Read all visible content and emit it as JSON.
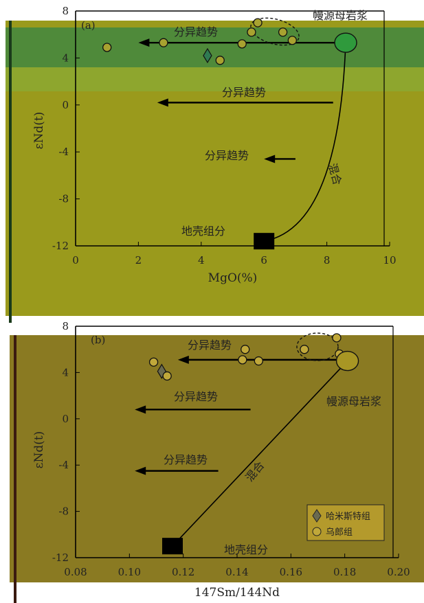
{
  "colors": {
    "panel_a_band_top": "#4f8a3a",
    "panel_a_band_mid": "#8ea62e",
    "panel_a_bg": "#9a9a1c",
    "panel_b_bg": "#8a7a22",
    "circle_fill": "#a8a230",
    "circle_fill_b": "#c0a83a",
    "mantle_a": "#2f9a3c",
    "mantle_b": "#a89624",
    "diamond_a": "#2f7a52",
    "diamond_b": "#6a6a50",
    "crust": "#000000",
    "line": "#000000"
  },
  "legend": {
    "items": [
      {
        "label": "哈米斯特组",
        "marker": "diamond"
      },
      {
        "label": "乌郎组",
        "marker": "circle"
      }
    ]
  },
  "chart_data": [
    {
      "type": "scatter",
      "panel_label": "(a)",
      "xlabel": "MgO(%)",
      "ylabel": "εNd(t)",
      "xlim": [
        0,
        10
      ],
      "ylim": [
        -12,
        8
      ],
      "xticks": [
        "0",
        "2",
        "4",
        "6",
        "8",
        "10"
      ],
      "yticks": [
        "8",
        "4",
        "0",
        "-4",
        "-8",
        "-12"
      ],
      "series": [
        {
          "name": "哈米斯特组",
          "marker": "diamond",
          "points": [
            {
              "x": 4.2,
              "y": 4.2
            }
          ]
        },
        {
          "name": "乌郎组",
          "marker": "circle",
          "points": [
            {
              "x": 1.0,
              "y": 4.9
            },
            {
              "x": 2.8,
              "y": 5.3
            },
            {
              "x": 4.6,
              "y": 3.8
            },
            {
              "x": 5.3,
              "y": 5.2
            },
            {
              "x": 5.6,
              "y": 6.2
            },
            {
              "x": 5.8,
              "y": 7.0
            },
            {
              "x": 6.6,
              "y": 6.2
            },
            {
              "x": 6.9,
              "y": 5.5
            }
          ]
        }
      ],
      "endmembers": {
        "mantle": {
          "label": "幔源母岩浆",
          "x": 8.6,
          "y": 5.3
        },
        "crust": {
          "label": "地壳组分",
          "x": 6.0,
          "y": -11.6
        }
      },
      "mixing_label": "混合",
      "trends": [
        {
          "label": "分异趋势",
          "x_from": 8.5,
          "x_to": 2.0,
          "y": 5.3
        },
        {
          "label": "分异趋势",
          "x_from": 8.2,
          "x_to": 2.6,
          "y": 0.2
        },
        {
          "label": "分异趋势",
          "x_from": 7.0,
          "x_to": 6.0,
          "y": -4.6
        }
      ]
    },
    {
      "type": "scatter",
      "panel_label": "(b)",
      "xlabel": "147Sm/144Nd",
      "ylabel": "εNd(t)",
      "xlim": [
        0.08,
        0.2
      ],
      "ylim": [
        -12,
        8
      ],
      "xticks": [
        "0.08",
        "0.10",
        "0.12",
        "0.14",
        "0.16",
        "0.18",
        "0.20"
      ],
      "yticks": [
        "8",
        "4",
        "0",
        "-4",
        "-8",
        "-12"
      ],
      "series": [
        {
          "name": "哈米斯特组",
          "marker": "diamond",
          "points": [
            {
              "x": 0.112,
              "y": 4.1
            }
          ]
        },
        {
          "name": "乌郎组",
          "marker": "circle",
          "points": [
            {
              "x": 0.109,
              "y": 4.9
            },
            {
              "x": 0.114,
              "y": 3.7
            },
            {
              "x": 0.142,
              "y": 5.1
            },
            {
              "x": 0.143,
              "y": 6.0
            },
            {
              "x": 0.148,
              "y": 5.0
            },
            {
              "x": 0.165,
              "y": 6.0
            },
            {
              "x": 0.177,
              "y": 7.0
            },
            {
              "x": 0.178,
              "y": 5.6
            }
          ]
        }
      ],
      "endmembers": {
        "mantle": {
          "label": "幔源母岩浆",
          "x": 0.181,
          "y": 5.0
        },
        "crust": {
          "label": "地壳组分",
          "x": 0.116,
          "y": -11.0
        }
      },
      "mixing_label": "混合",
      "trends": [
        {
          "label": "分异趋势",
          "x_from": 0.178,
          "x_to": 0.118,
          "y": 5.1
        },
        {
          "label": "分异趋势",
          "x_from": 0.145,
          "x_to": 0.102,
          "y": 0.8
        },
        {
          "label": "分异趋势",
          "x_from": 0.133,
          "x_to": 0.102,
          "y": -4.5
        }
      ]
    }
  ]
}
